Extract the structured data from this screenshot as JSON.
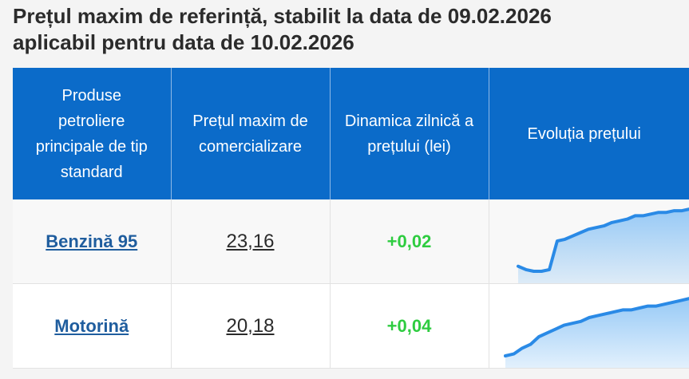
{
  "title": {
    "line1": "Prețul maxim de referință, stabilit la data de 09.02.2026",
    "line2": "aplicabil pentru data de 10.02.2026"
  },
  "table": {
    "headers": [
      "Produse petroliere principale de tip standard",
      "Prețul maxim de comercializare",
      "Dinamica zilnică a prețului (lei)",
      "Evoluția prețului"
    ],
    "rows": [
      {
        "product": "Benzină 95",
        "price": "23,16",
        "change": "+0,02",
        "trend": [
          22.82,
          22.8,
          22.79,
          22.79,
          22.8,
          22.97,
          22.98,
          23.0,
          23.02,
          23.04,
          23.05,
          23.06,
          23.08,
          23.09,
          23.1,
          23.12,
          23.12,
          23.13,
          23.14,
          23.14,
          23.15,
          23.15,
          23.16
        ]
      },
      {
        "product": "Motorină",
        "price": "20,18",
        "change": "+0,04",
        "trend": [
          19.88,
          19.89,
          19.92,
          19.94,
          19.98,
          20.0,
          20.02,
          20.04,
          20.05,
          20.06,
          20.08,
          20.09,
          20.1,
          20.11,
          20.12,
          20.12,
          20.13,
          20.14,
          20.14,
          20.15,
          20.16,
          20.17,
          20.18
        ]
      }
    ]
  },
  "colors": {
    "header_bg": "#0b6bc9",
    "link": "#1f5d9e",
    "positive_change": "#2ecc40",
    "sparkline_line": "#2a8ae6",
    "sparkline_fill_top": "#8cc4f5"
  }
}
